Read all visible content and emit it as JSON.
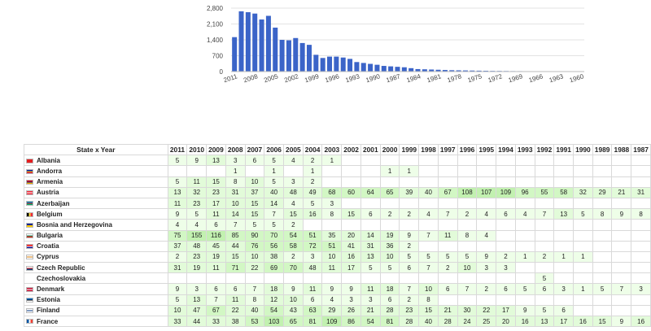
{
  "chart_data": {
    "type": "bar",
    "color": "#3b64c8",
    "years": [
      2011,
      2010,
      2009,
      2008,
      2007,
      2006,
      2005,
      2004,
      2003,
      2002,
      2001,
      2000,
      1999,
      1998,
      1997,
      1996,
      1995,
      1994,
      1993,
      1992,
      1991,
      1990,
      1989,
      1988,
      1987,
      1986,
      1985,
      1984,
      1983,
      1982,
      1981,
      1980,
      1979,
      1978,
      1977,
      1976,
      1975,
      1974,
      1973,
      1972,
      1971,
      1970,
      1969,
      1968,
      1967,
      1966,
      1965,
      1964,
      1963,
      1962,
      1961,
      1960
    ],
    "values": [
      1520,
      2660,
      2620,
      2560,
      2300,
      2460,
      1940,
      1400,
      1380,
      1480,
      1260,
      1180,
      740,
      600,
      660,
      660,
      620,
      560,
      420,
      380,
      340,
      300,
      250,
      230,
      210,
      190,
      150,
      110,
      100,
      90,
      80,
      70,
      60,
      55,
      50,
      45,
      40,
      35,
      30,
      28,
      25,
      22,
      20,
      18,
      15,
      12,
      10,
      8,
      6,
      4,
      3,
      2
    ],
    "ylim": [
      0,
      2800
    ],
    "yticks": [
      "0",
      "700",
      "1,400",
      "2,100",
      "2,800"
    ],
    "xtick_labels": [
      "2011",
      "2008",
      "2005",
      "2002",
      "1999",
      "1996",
      "1993",
      "1990",
      "1987",
      "1984",
      "1981",
      "1978",
      "1975",
      "1972",
      "1969",
      "1966",
      "1963",
      "1960"
    ],
    "grid": true
  },
  "table": {
    "corner_label": "State x Year",
    "years": [
      "2011",
      "2010",
      "2009",
      "2008",
      "2007",
      "2006",
      "2005",
      "2004",
      "2003",
      "2002",
      "2001",
      "2000",
      "1999",
      "1998",
      "1997",
      "1996",
      "1995",
      "1994",
      "1993",
      "1992",
      "1991",
      "1990",
      "1989",
      "1988",
      "1987"
    ],
    "rows": [
      {
        "name": "Albania",
        "flag": "flag-albania-icon",
        "colors": [
          "#e41e20",
          "#e41e20"
        ],
        "values": [
          "5",
          "9",
          "13",
          "3",
          "6",
          "5",
          "4",
          "2",
          "1",
          "",
          "",
          "",
          "",
          "",
          "",
          "",
          "",
          "",
          "",
          "",
          "",
          "",
          "",
          "",
          ""
        ]
      },
      {
        "name": "Andorra",
        "flag": "flag-andorra-icon",
        "colors": [
          "#0018a8",
          "#fedf00",
          "#d0103a"
        ],
        "values": [
          "",
          "",
          "",
          "1",
          "",
          "1",
          "",
          "1",
          "",
          "",
          "",
          "1",
          "1",
          "",
          "",
          "",
          "",
          "",
          "",
          "",
          "",
          "",
          "",
          "",
          ""
        ]
      },
      {
        "name": "Armenia",
        "flag": "flag-armenia-icon",
        "colors": [
          "#d90012",
          "#0033a0",
          "#f2a800"
        ],
        "values": [
          "5",
          "11",
          "15",
          "8",
          "10",
          "5",
          "3",
          "2",
          "",
          "",
          "",
          "",
          "",
          "",
          "",
          "",
          "",
          "",
          "",
          "",
          "",
          "",
          "",
          "",
          ""
        ]
      },
      {
        "name": "Austria",
        "flag": "flag-austria-icon",
        "colors": [
          "#ed2939",
          "#ffffff",
          "#ed2939"
        ],
        "values": [
          "13",
          "32",
          "23",
          "31",
          "37",
          "40",
          "48",
          "49",
          "68",
          "60",
          "64",
          "65",
          "39",
          "40",
          "67",
          "108",
          "107",
          "109",
          "96",
          "55",
          "58",
          "32",
          "29",
          "21",
          "31"
        ]
      },
      {
        "name": "Azerbaijan",
        "flag": "flag-azerbaijan-icon",
        "colors": [
          "#0092bc",
          "#e4002b",
          "#00af66"
        ],
        "values": [
          "11",
          "23",
          "17",
          "10",
          "15",
          "14",
          "4",
          "5",
          "3",
          "",
          "",
          "",
          "",
          "",
          "",
          "",
          "",
          "",
          "",
          "",
          "",
          "",
          "",
          "",
          ""
        ]
      },
      {
        "name": "Belgium",
        "flag": "flag-belgium-icon",
        "colors": [
          "#000000",
          "#fae042",
          "#ed2939"
        ],
        "vertical": true,
        "values": [
          "9",
          "5",
          "11",
          "14",
          "15",
          "7",
          "15",
          "16",
          "8",
          "15",
          "6",
          "2",
          "2",
          "4",
          "7",
          "2",
          "4",
          "6",
          "4",
          "7",
          "13",
          "5",
          "8",
          "9",
          "8"
        ]
      },
      {
        "name": "Bosnia and Herzegovina",
        "flag": "flag-bosnia-icon",
        "colors": [
          "#002395",
          "#fecb00"
        ],
        "values": [
          "4",
          "4",
          "6",
          "7",
          "5",
          "5",
          "2",
          "",
          "",
          "",
          "",
          "",
          "",
          "",
          "",
          "",
          "",
          "",
          "",
          "",
          "",
          "",
          "",
          "",
          ""
        ]
      },
      {
        "name": "Bulgaria",
        "flag": "flag-bulgaria-icon",
        "colors": [
          "#ffffff",
          "#00966e",
          "#d62612"
        ],
        "values": [
          "75",
          "155",
          "116",
          "85",
          "90",
          "70",
          "54",
          "51",
          "35",
          "20",
          "14",
          "19",
          "9",
          "7",
          "11",
          "8",
          "4",
          "",
          "",
          "",
          "",
          "",
          "",
          "",
          ""
        ]
      },
      {
        "name": "Croatia",
        "flag": "flag-croatia-icon",
        "colors": [
          "#ff0000",
          "#ffffff",
          "#171796"
        ],
        "values": [
          "37",
          "48",
          "45",
          "44",
          "76",
          "56",
          "58",
          "72",
          "51",
          "41",
          "31",
          "36",
          "2",
          "",
          "",
          "",
          "",
          "",
          "",
          "",
          "",
          "",
          "",
          "",
          ""
        ]
      },
      {
        "name": "Cyprus",
        "flag": "flag-cyprus-icon",
        "colors": [
          "#ffffff",
          "#d57800",
          "#ffffff"
        ],
        "values": [
          "2",
          "23",
          "19",
          "15",
          "10",
          "38",
          "2",
          "3",
          "10",
          "16",
          "13",
          "10",
          "5",
          "5",
          "5",
          "5",
          "9",
          "2",
          "1",
          "2",
          "1",
          "1",
          "",
          "",
          ""
        ]
      },
      {
        "name": "Czech Republic",
        "flag": "flag-czech-icon",
        "colors": [
          "#ffffff",
          "#d7141a",
          "#11457e"
        ],
        "values": [
          "31",
          "19",
          "11",
          "71",
          "22",
          "69",
          "70",
          "48",
          "11",
          "17",
          "5",
          "5",
          "6",
          "7",
          "2",
          "10",
          "3",
          "3",
          "",
          "",
          "",
          "",
          "",
          "",
          ""
        ]
      },
      {
        "name": "Czechoslovakia",
        "flag": "",
        "colors": [],
        "values": [
          "",
          "",
          "",
          "",
          "",
          "",
          "",
          "",
          "",
          "",
          "",
          "",
          "",
          "",
          "",
          "",
          "",
          "",
          "",
          "5",
          "",
          "",
          "",
          "",
          ""
        ]
      },
      {
        "name": "Denmark",
        "flag": "flag-denmark-icon",
        "colors": [
          "#c60c30",
          "#ffffff",
          "#c60c30"
        ],
        "values": [
          "9",
          "3",
          "6",
          "6",
          "7",
          "18",
          "9",
          "11",
          "9",
          "9",
          "11",
          "18",
          "7",
          "10",
          "6",
          "7",
          "2",
          "6",
          "5",
          "6",
          "3",
          "1",
          "5",
          "7",
          "3"
        ]
      },
      {
        "name": "Estonia",
        "flag": "flag-estonia-icon",
        "colors": [
          "#0072ce",
          "#000000",
          "#ffffff"
        ],
        "values": [
          "5",
          "13",
          "7",
          "11",
          "8",
          "12",
          "10",
          "6",
          "4",
          "3",
          "3",
          "6",
          "2",
          "8",
          "",
          "",
          "",
          "",
          "",
          "",
          "",
          "",
          "",
          "",
          ""
        ]
      },
      {
        "name": "Finland",
        "flag": "flag-finland-icon",
        "colors": [
          "#ffffff",
          "#003580",
          "#ffffff"
        ],
        "values": [
          "10",
          "47",
          "67",
          "22",
          "40",
          "54",
          "43",
          "63",
          "29",
          "26",
          "21",
          "28",
          "23",
          "15",
          "21",
          "30",
          "22",
          "17",
          "9",
          "5",
          "6",
          "",
          "",
          "",
          ""
        ]
      },
      {
        "name": "France",
        "flag": "flag-france-icon",
        "colors": [
          "#0055a4",
          "#ffffff",
          "#ef4135"
        ],
        "vertical": true,
        "values": [
          "33",
          "44",
          "33",
          "38",
          "53",
          "103",
          "65",
          "81",
          "109",
          "86",
          "54",
          "81",
          "28",
          "40",
          "28",
          "24",
          "25",
          "20",
          "16",
          "13",
          "17",
          "16",
          "15",
          "9",
          "16"
        ]
      }
    ]
  }
}
